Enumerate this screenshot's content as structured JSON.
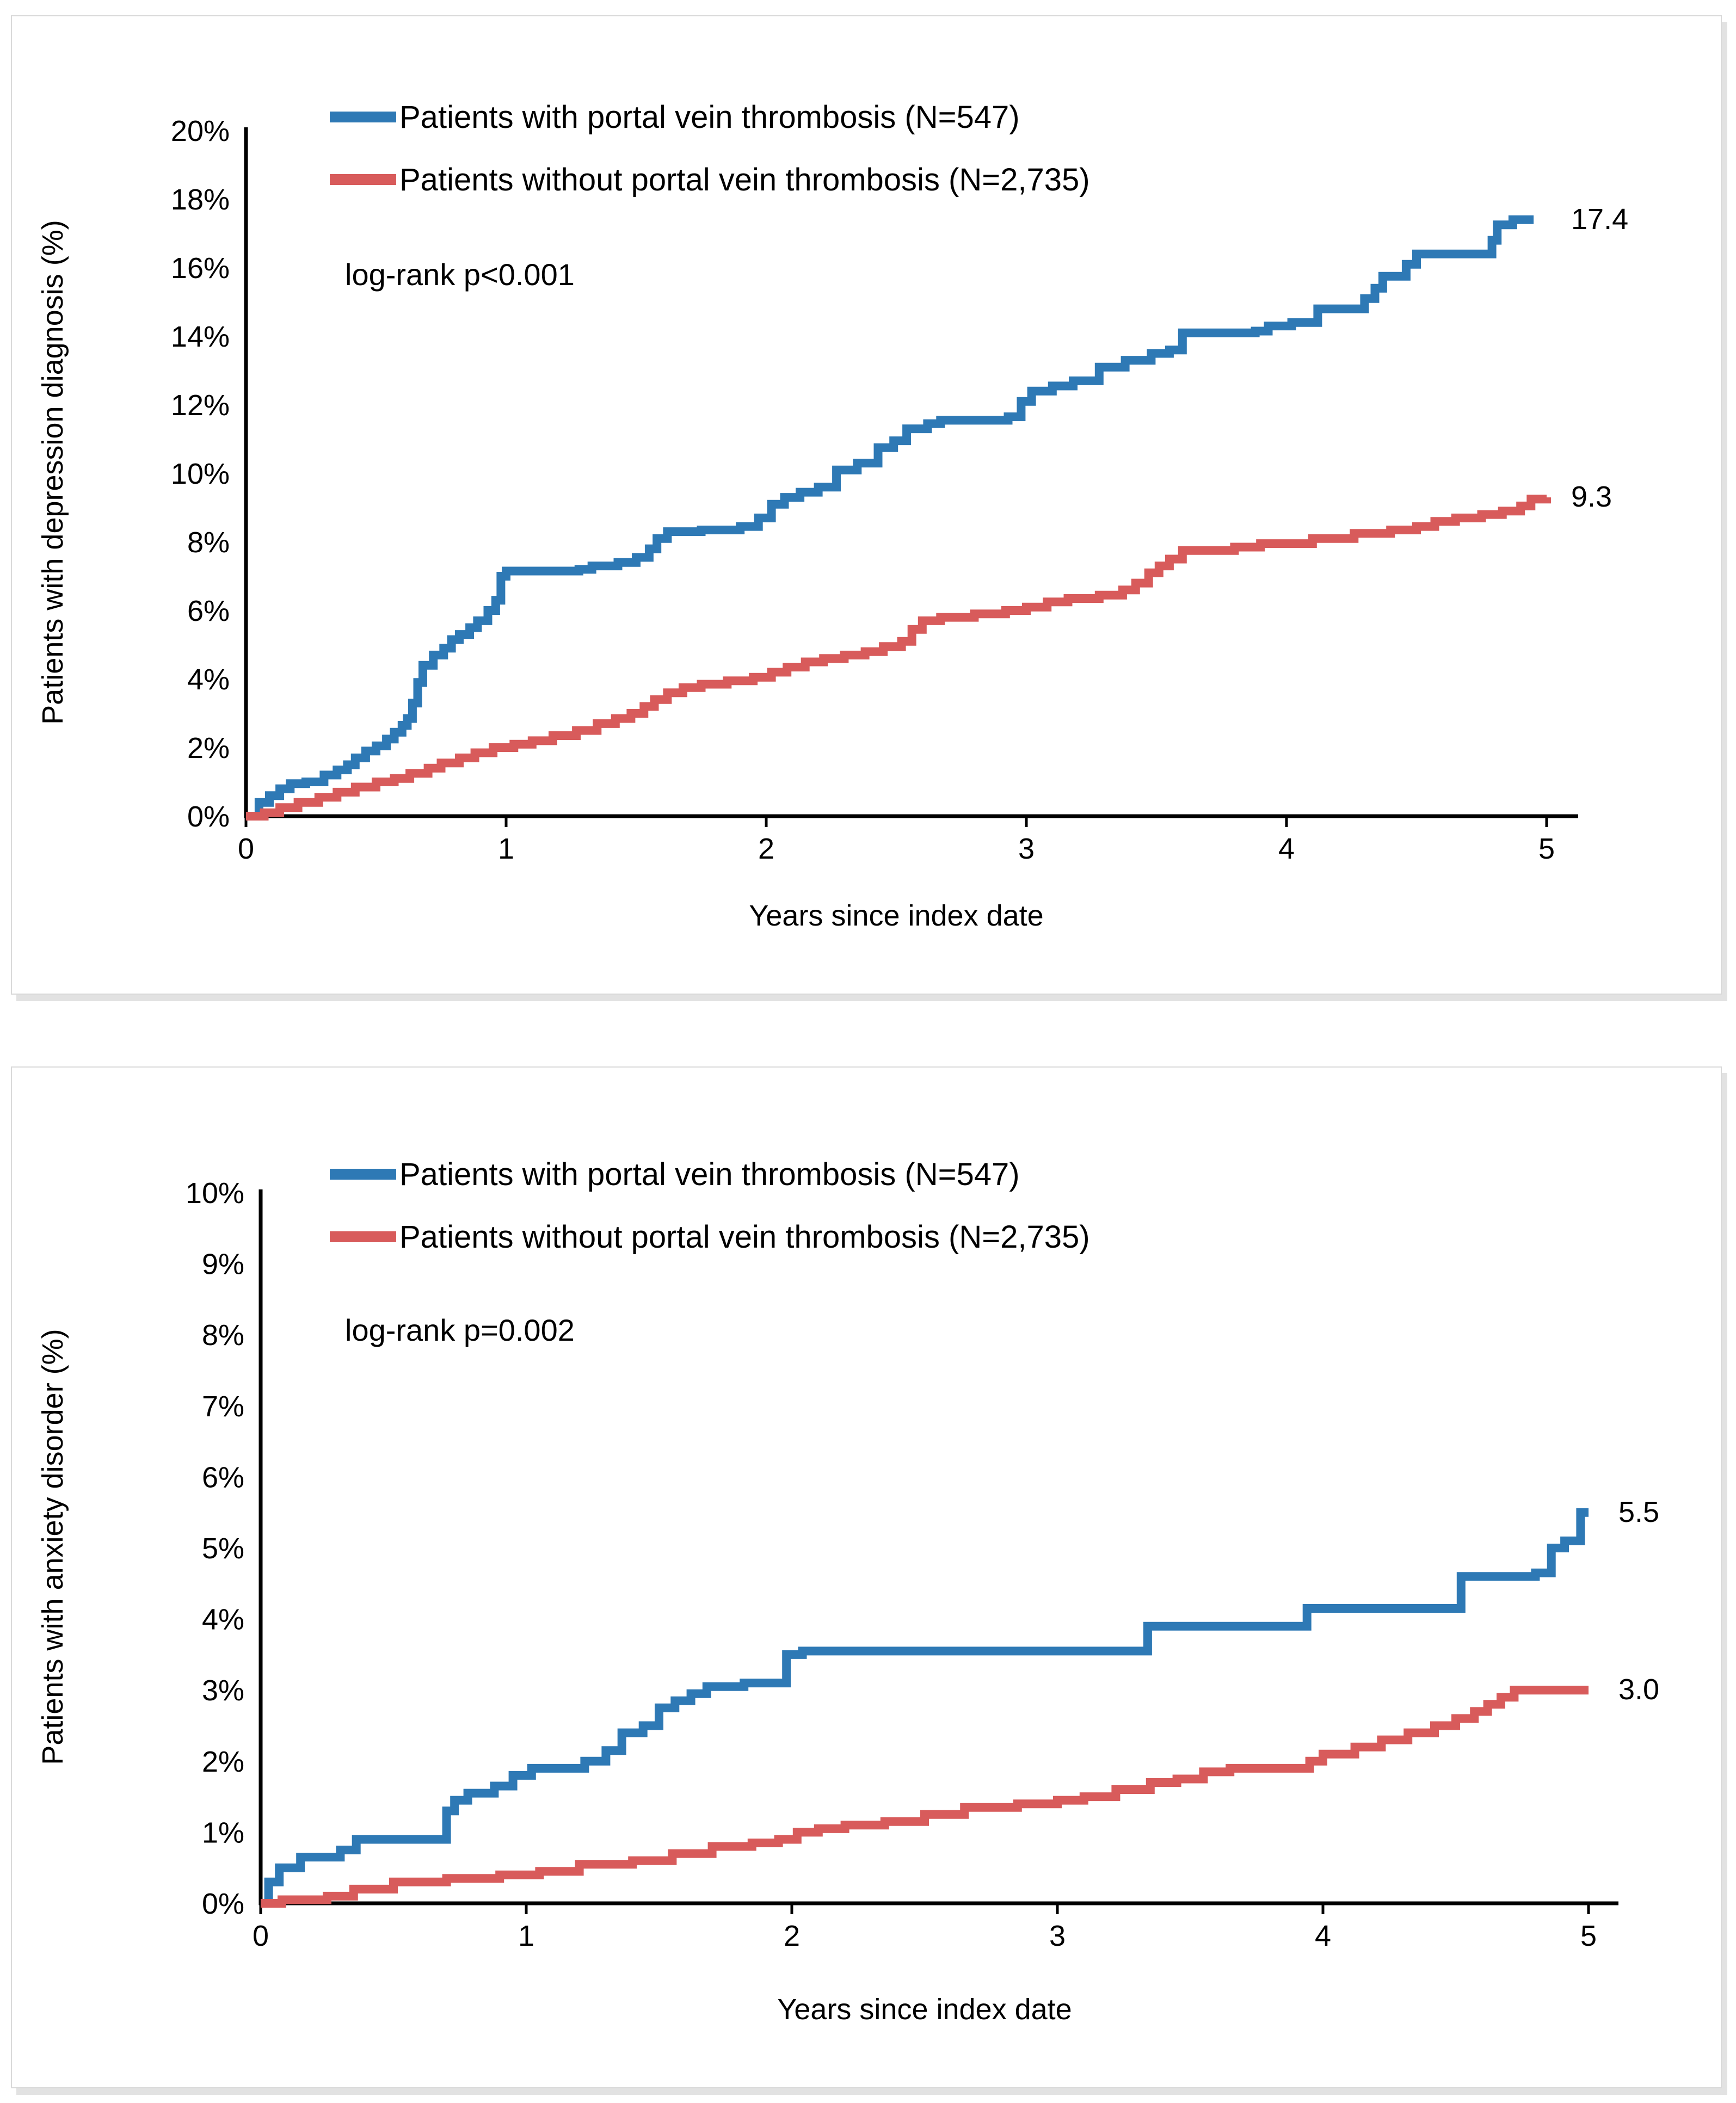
{
  "colors": {
    "with_pvt": "#2e79b5",
    "without_pvt": "#d85b5b",
    "axis": "#000000",
    "panel_border": "#d9d9d9"
  },
  "chart_data": [
    {
      "type": "line",
      "subtype": "step-after",
      "title": "",
      "xlabel": "Years since index date",
      "ylabel": "Patients with depression diagnosis (%)",
      "annotation": "log-rank p<0.001",
      "xlim": [
        0,
        5
      ],
      "ylim": [
        0,
        20
      ],
      "grid": false,
      "legend_position": "top-left-inside",
      "x_ticks": [
        "0",
        "1",
        "2",
        "3",
        "4",
        "5"
      ],
      "y_ticks": [
        "0%",
        "2%",
        "4%",
        "6%",
        "8%",
        "10%",
        "12%",
        "14%",
        "16%",
        "18%",
        "20%"
      ],
      "series": [
        {
          "name": "Patients with portal vein thrombosis (N=547)",
          "color": "#2e79b5",
          "end_label": "17.4",
          "end_value": 17.4,
          "points": [
            [
              0,
              0
            ],
            [
              0.05,
              0.4
            ],
            [
              0.09,
              0.6
            ],
            [
              0.13,
              0.8
            ],
            [
              0.17,
              0.95
            ],
            [
              0.23,
              1.0
            ],
            [
              0.3,
              1.2
            ],
            [
              0.35,
              1.35
            ],
            [
              0.39,
              1.5
            ],
            [
              0.42,
              1.7
            ],
            [
              0.46,
              1.9
            ],
            [
              0.5,
              2.05
            ],
            [
              0.54,
              2.25
            ],
            [
              0.57,
              2.45
            ],
            [
              0.6,
              2.65
            ],
            [
              0.62,
              2.85
            ],
            [
              0.64,
              3.3
            ],
            [
              0.66,
              3.9
            ],
            [
              0.68,
              4.4
            ],
            [
              0.72,
              4.7
            ],
            [
              0.76,
              4.9
            ],
            [
              0.79,
              5.15
            ],
            [
              0.82,
              5.3
            ],
            [
              0.86,
              5.5
            ],
            [
              0.89,
              5.7
            ],
            [
              0.93,
              6.0
            ],
            [
              0.96,
              6.3
            ],
            [
              0.98,
              7.0
            ],
            [
              1.0,
              7.15
            ],
            [
              1.28,
              7.2
            ],
            [
              1.33,
              7.3
            ],
            [
              1.43,
              7.4
            ],
            [
              1.5,
              7.55
            ],
            [
              1.55,
              7.8
            ],
            [
              1.58,
              8.1
            ],
            [
              1.62,
              8.3
            ],
            [
              1.75,
              8.35
            ],
            [
              1.9,
              8.45
            ],
            [
              1.97,
              8.7
            ],
            [
              2.02,
              9.1
            ],
            [
              2.07,
              9.3
            ],
            [
              2.13,
              9.45
            ],
            [
              2.2,
              9.6
            ],
            [
              2.27,
              10.1
            ],
            [
              2.35,
              10.3
            ],
            [
              2.43,
              10.75
            ],
            [
              2.49,
              10.95
            ],
            [
              2.54,
              11.3
            ],
            [
              2.62,
              11.45
            ],
            [
              2.67,
              11.55
            ],
            [
              2.93,
              11.65
            ],
            [
              2.98,
              12.1
            ],
            [
              3.02,
              12.4
            ],
            [
              3.1,
              12.55
            ],
            [
              3.18,
              12.7
            ],
            [
              3.28,
              13.1
            ],
            [
              3.38,
              13.3
            ],
            [
              3.48,
              13.5
            ],
            [
              3.55,
              13.6
            ],
            [
              3.6,
              14.1
            ],
            [
              3.88,
              14.15
            ],
            [
              3.93,
              14.3
            ],
            [
              4.02,
              14.4
            ],
            [
              4.12,
              14.8
            ],
            [
              4.3,
              15.1
            ],
            [
              4.34,
              15.4
            ],
            [
              4.37,
              15.75
            ],
            [
              4.46,
              16.1
            ],
            [
              4.5,
              16.4
            ],
            [
              4.79,
              16.8
            ],
            [
              4.81,
              17.25
            ],
            [
              4.87,
              17.4
            ],
            [
              4.95,
              17.4
            ]
          ]
        },
        {
          "name": "Patients without portal vein thrombosis (N=2,735)",
          "color": "#d85b5b",
          "end_label": "9.3",
          "end_value": 9.3,
          "points": [
            [
              0,
              0
            ],
            [
              0.07,
              0.1
            ],
            [
              0.13,
              0.25
            ],
            [
              0.2,
              0.4
            ],
            [
              0.28,
              0.55
            ],
            [
              0.35,
              0.7
            ],
            [
              0.42,
              0.85
            ],
            [
              0.5,
              1.0
            ],
            [
              0.57,
              1.1
            ],
            [
              0.63,
              1.25
            ],
            [
              0.7,
              1.4
            ],
            [
              0.75,
              1.55
            ],
            [
              0.82,
              1.7
            ],
            [
              0.88,
              1.85
            ],
            [
              0.95,
              2.0
            ],
            [
              1.03,
              2.1
            ],
            [
              1.1,
              2.2
            ],
            [
              1.18,
              2.35
            ],
            [
              1.27,
              2.5
            ],
            [
              1.35,
              2.7
            ],
            [
              1.42,
              2.85
            ],
            [
              1.48,
              3.0
            ],
            [
              1.53,
              3.2
            ],
            [
              1.57,
              3.4
            ],
            [
              1.62,
              3.6
            ],
            [
              1.68,
              3.75
            ],
            [
              1.75,
              3.85
            ],
            [
              1.85,
              3.95
            ],
            [
              1.95,
              4.05
            ],
            [
              2.02,
              4.2
            ],
            [
              2.08,
              4.35
            ],
            [
              2.15,
              4.5
            ],
            [
              2.22,
              4.6
            ],
            [
              2.3,
              4.7
            ],
            [
              2.38,
              4.8
            ],
            [
              2.45,
              4.95
            ],
            [
              2.52,
              5.1
            ],
            [
              2.56,
              5.45
            ],
            [
              2.6,
              5.7
            ],
            [
              2.67,
              5.8
            ],
            [
              2.8,
              5.9
            ],
            [
              2.92,
              6.0
            ],
            [
              3.0,
              6.1
            ],
            [
              3.08,
              6.25
            ],
            [
              3.16,
              6.35
            ],
            [
              3.28,
              6.45
            ],
            [
              3.37,
              6.6
            ],
            [
              3.42,
              6.8
            ],
            [
              3.47,
              7.1
            ],
            [
              3.51,
              7.3
            ],
            [
              3.55,
              7.5
            ],
            [
              3.6,
              7.75
            ],
            [
              3.8,
              7.85
            ],
            [
              3.9,
              7.95
            ],
            [
              4.1,
              8.1
            ],
            [
              4.26,
              8.25
            ],
            [
              4.4,
              8.35
            ],
            [
              4.5,
              8.45
            ],
            [
              4.57,
              8.6
            ],
            [
              4.65,
              8.7
            ],
            [
              4.75,
              8.8
            ],
            [
              4.83,
              8.9
            ],
            [
              4.9,
              9.05
            ],
            [
              4.94,
              9.25
            ],
            [
              5.0,
              9.3
            ]
          ]
        }
      ]
    },
    {
      "type": "line",
      "subtype": "step-after",
      "title": "",
      "xlabel": "Years since index date",
      "ylabel": "Patients with anxiety disorder (%)",
      "annotation": "log-rank p=0.002",
      "xlim": [
        0,
        5
      ],
      "ylim": [
        0,
        10
      ],
      "grid": false,
      "legend_position": "top-left-inside",
      "x_ticks": [
        "0",
        "1",
        "2",
        "3",
        "4",
        "5"
      ],
      "y_ticks": [
        "0%",
        "1%",
        "2%",
        "3%",
        "4%",
        "5%",
        "6%",
        "7%",
        "8%",
        "9%",
        "10%"
      ],
      "series": [
        {
          "name": "Patients with portal vein thrombosis (N=547)",
          "color": "#2e79b5",
          "end_label": "5.5",
          "end_value": 5.5,
          "points": [
            [
              0,
              0
            ],
            [
              0.03,
              0.3
            ],
            [
              0.07,
              0.5
            ],
            [
              0.15,
              0.65
            ],
            [
              0.3,
              0.75
            ],
            [
              0.36,
              0.9
            ],
            [
              0.7,
              1.3
            ],
            [
              0.73,
              1.45
            ],
            [
              0.78,
              1.55
            ],
            [
              0.88,
              1.65
            ],
            [
              0.95,
              1.8
            ],
            [
              1.02,
              1.9
            ],
            [
              1.22,
              2.0
            ],
            [
              1.3,
              2.15
            ],
            [
              1.36,
              2.4
            ],
            [
              1.44,
              2.5
            ],
            [
              1.5,
              2.75
            ],
            [
              1.56,
              2.85
            ],
            [
              1.62,
              2.95
            ],
            [
              1.68,
              3.05
            ],
            [
              1.82,
              3.1
            ],
            [
              1.98,
              3.5
            ],
            [
              2.04,
              3.55
            ],
            [
              3.3,
              3.55
            ],
            [
              3.34,
              3.9
            ],
            [
              3.9,
              3.9
            ],
            [
              3.94,
              4.15
            ],
            [
              4.48,
              4.15
            ],
            [
              4.52,
              4.6
            ],
            [
              4.8,
              4.65
            ],
            [
              4.86,
              5.0
            ],
            [
              4.91,
              5.1
            ],
            [
              4.97,
              5.5
            ],
            [
              5.0,
              5.5
            ]
          ]
        },
        {
          "name": "Patients without portal vein thrombosis (N=2,735)",
          "color": "#d85b5b",
          "end_label": "3.0",
          "end_value": 3.0,
          "points": [
            [
              0,
              0
            ],
            [
              0.08,
              0.05
            ],
            [
              0.25,
              0.1
            ],
            [
              0.35,
              0.2
            ],
            [
              0.5,
              0.3
            ],
            [
              0.7,
              0.35
            ],
            [
              0.9,
              0.4
            ],
            [
              1.05,
              0.45
            ],
            [
              1.2,
              0.55
            ],
            [
              1.4,
              0.6
            ],
            [
              1.55,
              0.7
            ],
            [
              1.7,
              0.8
            ],
            [
              1.85,
              0.85
            ],
            [
              1.95,
              0.9
            ],
            [
              2.02,
              1.0
            ],
            [
              2.1,
              1.05
            ],
            [
              2.2,
              1.1
            ],
            [
              2.35,
              1.15
            ],
            [
              2.5,
              1.25
            ],
            [
              2.65,
              1.35
            ],
            [
              2.85,
              1.4
            ],
            [
              3.0,
              1.45
            ],
            [
              3.1,
              1.5
            ],
            [
              3.22,
              1.6
            ],
            [
              3.35,
              1.7
            ],
            [
              3.45,
              1.75
            ],
            [
              3.55,
              1.85
            ],
            [
              3.65,
              1.9
            ],
            [
              3.95,
              2.0
            ],
            [
              4.0,
              2.1
            ],
            [
              4.12,
              2.2
            ],
            [
              4.22,
              2.3
            ],
            [
              4.32,
              2.4
            ],
            [
              4.42,
              2.5
            ],
            [
              4.5,
              2.6
            ],
            [
              4.57,
              2.7
            ],
            [
              4.62,
              2.8
            ],
            [
              4.67,
              2.9
            ],
            [
              4.72,
              3.0
            ],
            [
              5.0,
              3.0
            ]
          ]
        }
      ]
    }
  ]
}
